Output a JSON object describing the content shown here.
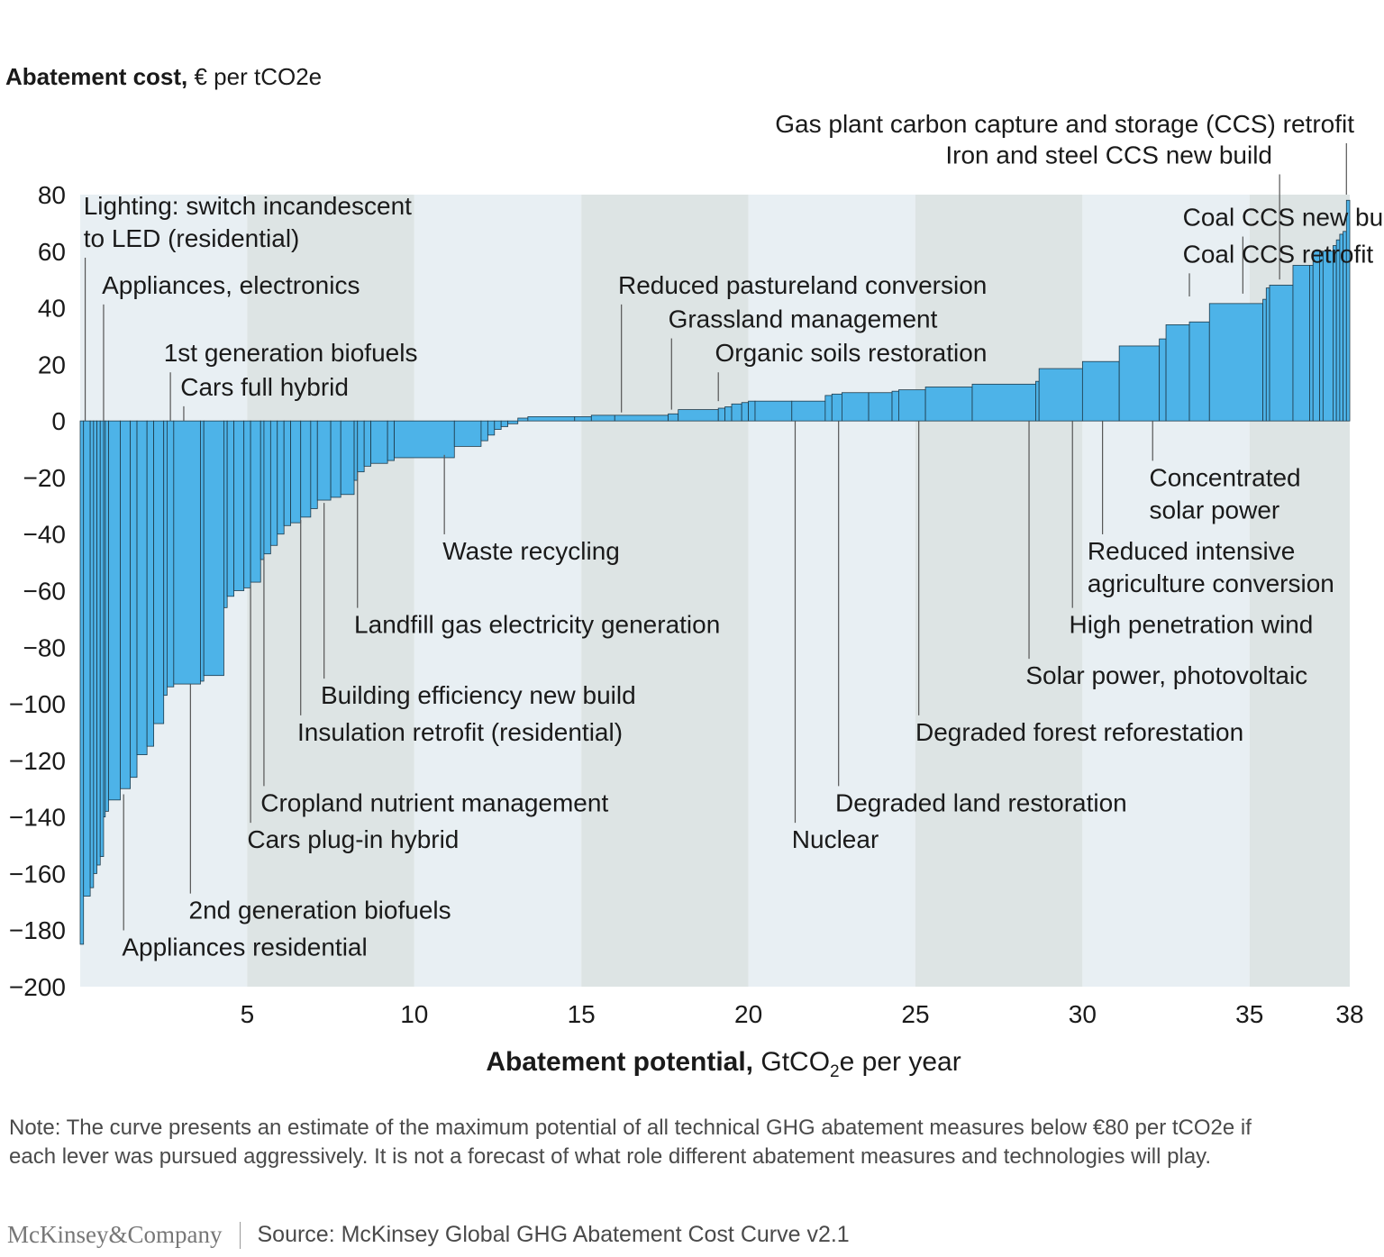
{
  "chart_data": {
    "type": "bar",
    "subtype": "marginal-abatement-cost-curve",
    "ylabel_bold": "Abatement cost,",
    "ylabel_rest": "€ per tCO2e",
    "xlabel_bold": "Abatement potential,",
    "xlabel_rest_pre": "GtCO",
    "xlabel_sub": "2",
    "xlabel_rest_post": "e per year",
    "xlim": [
      0,
      38
    ],
    "ylim": [
      -200,
      80
    ],
    "xticks": [
      5,
      10,
      15,
      20,
      25,
      30,
      35,
      38
    ],
    "yticks": [
      80,
      60,
      40,
      20,
      0,
      -20,
      -40,
      -60,
      -80,
      -100,
      -120,
      -140,
      -160,
      -180,
      -200
    ],
    "colors": {
      "bar": "#4db3e8",
      "bar_edge": "#1e3a4a",
      "band_light": "#e8eff3",
      "band_dark": "#dde4e4"
    },
    "bars": [
      {
        "x0": 0.0,
        "x1": 0.1,
        "cost": -185
      },
      {
        "x0": 0.1,
        "x1": 0.3,
        "cost": -168
      },
      {
        "x0": 0.3,
        "x1": 0.4,
        "cost": -165
      },
      {
        "x0": 0.4,
        "x1": 0.5,
        "cost": -160
      },
      {
        "x0": 0.5,
        "x1": 0.6,
        "cost": -157
      },
      {
        "x0": 0.6,
        "x1": 0.7,
        "cost": -154
      },
      {
        "x0": 0.7,
        "x1": 0.75,
        "cost": -140
      },
      {
        "x0": 0.75,
        "x1": 0.85,
        "cost": -138
      },
      {
        "x0": 0.85,
        "x1": 1.2,
        "cost": -134
      },
      {
        "x0": 1.2,
        "x1": 1.5,
        "cost": -130
      },
      {
        "x0": 1.5,
        "x1": 1.7,
        "cost": -126
      },
      {
        "x0": 1.7,
        "x1": 2.0,
        "cost": -118
      },
      {
        "x0": 2.0,
        "x1": 2.2,
        "cost": -115
      },
      {
        "x0": 2.2,
        "x1": 2.5,
        "cost": -107
      },
      {
        "x0": 2.5,
        "x1": 2.6,
        "cost": -97
      },
      {
        "x0": 2.6,
        "x1": 2.8,
        "cost": -94
      },
      {
        "x0": 2.8,
        "x1": 3.6,
        "cost": -93
      },
      {
        "x0": 3.6,
        "x1": 3.7,
        "cost": -92
      },
      {
        "x0": 3.7,
        "x1": 4.3,
        "cost": -90
      },
      {
        "x0": 4.3,
        "x1": 4.4,
        "cost": -66
      },
      {
        "x0": 4.4,
        "x1": 4.6,
        "cost": -62
      },
      {
        "x0": 4.6,
        "x1": 4.9,
        "cost": -60
      },
      {
        "x0": 4.9,
        "x1": 5.1,
        "cost": -59
      },
      {
        "x0": 5.1,
        "x1": 5.4,
        "cost": -57
      },
      {
        "x0": 5.4,
        "x1": 5.5,
        "cost": -49
      },
      {
        "x0": 5.5,
        "x1": 5.7,
        "cost": -47
      },
      {
        "x0": 5.7,
        "x1": 5.9,
        "cost": -44
      },
      {
        "x0": 5.9,
        "x1": 6.1,
        "cost": -40
      },
      {
        "x0": 6.1,
        "x1": 6.3,
        "cost": -37
      },
      {
        "x0": 6.3,
        "x1": 6.6,
        "cost": -36
      },
      {
        "x0": 6.6,
        "x1": 6.9,
        "cost": -34
      },
      {
        "x0": 6.9,
        "x1": 7.1,
        "cost": -31
      },
      {
        "x0": 7.1,
        "x1": 7.5,
        "cost": -28
      },
      {
        "x0": 7.5,
        "x1": 7.8,
        "cost": -27
      },
      {
        "x0": 7.8,
        "x1": 8.2,
        "cost": -26
      },
      {
        "x0": 8.2,
        "x1": 8.3,
        "cost": -21
      },
      {
        "x0": 8.3,
        "x1": 8.5,
        "cost": -18
      },
      {
        "x0": 8.5,
        "x1": 8.7,
        "cost": -16
      },
      {
        "x0": 8.7,
        "x1": 9.2,
        "cost": -15
      },
      {
        "x0": 9.2,
        "x1": 9.4,
        "cost": -14
      },
      {
        "x0": 9.4,
        "x1": 11.2,
        "cost": -13
      },
      {
        "x0": 11.2,
        "x1": 12.0,
        "cost": -9
      },
      {
        "x0": 12.0,
        "x1": 12.2,
        "cost": -7
      },
      {
        "x0": 12.2,
        "x1": 12.4,
        "cost": -5
      },
      {
        "x0": 12.4,
        "x1": 12.6,
        "cost": -3
      },
      {
        "x0": 12.6,
        "x1": 12.8,
        "cost": -2
      },
      {
        "x0": 12.8,
        "x1": 13.1,
        "cost": -1
      },
      {
        "x0": 13.1,
        "x1": 13.4,
        "cost": 1
      },
      {
        "x0": 13.4,
        "x1": 14.8,
        "cost": 1.5
      },
      {
        "x0": 14.8,
        "x1": 15.3,
        "cost": 1.5
      },
      {
        "x0": 15.3,
        "x1": 16.0,
        "cost": 2
      },
      {
        "x0": 16.0,
        "x1": 17.6,
        "cost": 2
      },
      {
        "x0": 17.6,
        "x1": 17.9,
        "cost": 2.5
      },
      {
        "x0": 17.9,
        "x1": 19.1,
        "cost": 4
      },
      {
        "x0": 19.1,
        "x1": 19.3,
        "cost": 4.5
      },
      {
        "x0": 19.3,
        "x1": 19.5,
        "cost": 5
      },
      {
        "x0": 19.5,
        "x1": 19.8,
        "cost": 6
      },
      {
        "x0": 19.8,
        "x1": 20.0,
        "cost": 6.5
      },
      {
        "x0": 20.0,
        "x1": 20.2,
        "cost": 7
      },
      {
        "x0": 20.2,
        "x1": 21.3,
        "cost": 7
      },
      {
        "x0": 21.3,
        "x1": 22.3,
        "cost": 7
      },
      {
        "x0": 22.3,
        "x1": 22.5,
        "cost": 9
      },
      {
        "x0": 22.5,
        "x1": 22.8,
        "cost": 9.5
      },
      {
        "x0": 22.8,
        "x1": 23.6,
        "cost": 10
      },
      {
        "x0": 23.6,
        "x1": 24.3,
        "cost": 10
      },
      {
        "x0": 24.3,
        "x1": 24.5,
        "cost": 10.5
      },
      {
        "x0": 24.5,
        "x1": 25.3,
        "cost": 11
      },
      {
        "x0": 25.3,
        "x1": 26.7,
        "cost": 12
      },
      {
        "x0": 26.7,
        "x1": 28.6,
        "cost": 13
      },
      {
        "x0": 28.6,
        "x1": 28.7,
        "cost": 14
      },
      {
        "x0": 28.7,
        "x1": 30.0,
        "cost": 18.5
      },
      {
        "x0": 30.0,
        "x1": 31.1,
        "cost": 21
      },
      {
        "x0": 31.1,
        "x1": 32.3,
        "cost": 26.5
      },
      {
        "x0": 32.3,
        "x1": 32.5,
        "cost": 29
      },
      {
        "x0": 32.5,
        "x1": 33.2,
        "cost": 34
      },
      {
        "x0": 33.2,
        "x1": 33.8,
        "cost": 35
      },
      {
        "x0": 33.8,
        "x1": 35.4,
        "cost": 41.5
      },
      {
        "x0": 35.4,
        "x1": 35.5,
        "cost": 43
      },
      {
        "x0": 35.5,
        "x1": 35.6,
        "cost": 47
      },
      {
        "x0": 35.6,
        "x1": 36.3,
        "cost": 48
      },
      {
        "x0": 36.3,
        "x1": 36.8,
        "cost": 55
      },
      {
        "x0": 36.8,
        "x1": 36.9,
        "cost": 55
      },
      {
        "x0": 36.9,
        "x1": 37.1,
        "cost": 60
      },
      {
        "x0": 37.1,
        "x1": 37.2,
        "cost": 60
      },
      {
        "x0": 37.2,
        "x1": 37.5,
        "cost": 60
      },
      {
        "x0": 37.5,
        "x1": 37.6,
        "cost": 62
      },
      {
        "x0": 37.6,
        "x1": 37.7,
        "cost": 64
      },
      {
        "x0": 37.7,
        "x1": 37.8,
        "cost": 66
      },
      {
        "x0": 37.8,
        "x1": 37.9,
        "cost": 67
      },
      {
        "x0": 37.9,
        "x1": 38.0,
        "cost": 78
      }
    ],
    "annotations": [
      {
        "lines": [
          "Lighting: switch incandescent",
          "to LED (residential)"
        ],
        "anchor_x": 0.15,
        "anchor_cost": 0,
        "text_x": 0.1,
        "text_cost": 73,
        "side": "above"
      },
      {
        "lines": [
          "Appliances, electronics"
        ],
        "anchor_x": 0.7,
        "anchor_cost": 0,
        "text_x": 0.65,
        "text_cost": 45,
        "side": "above"
      },
      {
        "lines": [
          "1st generation biofuels"
        ],
        "anchor_x": 2.7,
        "anchor_cost": 0,
        "text_x": 2.5,
        "text_cost": 21,
        "side": "above"
      },
      {
        "lines": [
          "Cars full hybrid"
        ],
        "anchor_x": 3.1,
        "anchor_cost": 0,
        "text_x": 3.0,
        "text_cost": 9,
        "side": "above"
      },
      {
        "lines": [
          "Reduced pastureland conversion"
        ],
        "anchor_x": 16.2,
        "anchor_cost": 3,
        "text_x": 16.1,
        "text_cost": 45,
        "side": "above"
      },
      {
        "lines": [
          "Grassland management"
        ],
        "anchor_x": 17.7,
        "anchor_cost": 4,
        "text_x": 17.6,
        "text_cost": 33,
        "side": "above"
      },
      {
        "lines": [
          "Organic soils restoration"
        ],
        "anchor_x": 19.1,
        "anchor_cost": 7,
        "text_x": 19.0,
        "text_cost": 21,
        "side": "above"
      },
      {
        "lines": [
          "Coal CCS new build"
        ],
        "anchor_x": 34.8,
        "anchor_cost": 45,
        "text_x": 33.0,
        "text_cost": 69,
        "side": "above"
      },
      {
        "lines": [
          "Coal CCS retrofit"
        ],
        "anchor_x": 33.2,
        "anchor_cost": 44,
        "text_x": 33.0,
        "text_cost": 56,
        "side": "above"
      },
      {
        "lines": [
          "Iron and steel CCS new build"
        ],
        "anchor_x": 35.9,
        "anchor_cost": 50,
        "text_x": 25.9,
        "text_cost": 91,
        "side": "above"
      },
      {
        "lines": [
          "Gas plant carbon capture and storage (CCS) retrofit"
        ],
        "anchor_x": 37.9,
        "anchor_cost": 80,
        "text_x": 20.8,
        "text_cost": 102,
        "side": "above"
      },
      {
        "lines": [
          "Waste recycling"
        ],
        "anchor_x": 10.9,
        "anchor_cost": -12,
        "text_x": 10.85,
        "text_cost": -49,
        "side": "below"
      },
      {
        "lines": [
          "Landfill gas electricity generation"
        ],
        "anchor_x": 8.3,
        "anchor_cost": -18,
        "text_x": 8.2,
        "text_cost": -75,
        "side": "below"
      },
      {
        "lines": [
          "Building efficiency new build"
        ],
        "anchor_x": 7.3,
        "anchor_cost": -29,
        "text_x": 7.2,
        "text_cost": -100,
        "side": "below"
      },
      {
        "lines": [
          "Insulation retrofit (residential)"
        ],
        "anchor_x": 6.6,
        "anchor_cost": -35,
        "text_x": 6.5,
        "text_cost": -113,
        "side": "below"
      },
      {
        "lines": [
          "Cropland nutrient management"
        ],
        "anchor_x": 5.5,
        "anchor_cost": -48,
        "text_x": 5.4,
        "text_cost": -138,
        "side": "below"
      },
      {
        "lines": [
          "Cars plug-in hybrid"
        ],
        "anchor_x": 5.1,
        "anchor_cost": -58,
        "text_x": 5.0,
        "text_cost": -151,
        "side": "below"
      },
      {
        "lines": [
          "2nd generation biofuels"
        ],
        "anchor_x": 3.3,
        "anchor_cost": -93,
        "text_x": 3.25,
        "text_cost": -176,
        "side": "below"
      },
      {
        "lines": [
          "Appliances residential"
        ],
        "anchor_x": 1.3,
        "anchor_cost": -132,
        "text_x": 1.25,
        "text_cost": -189,
        "side": "below"
      },
      {
        "lines": [
          "Nuclear"
        ],
        "anchor_x": 21.4,
        "anchor_cost": 0,
        "text_x": 21.3,
        "text_cost": -151,
        "side": "below"
      },
      {
        "lines": [
          "Degraded land restoration"
        ],
        "anchor_x": 22.7,
        "anchor_cost": 0,
        "text_x": 22.6,
        "text_cost": -138,
        "side": "below"
      },
      {
        "lines": [
          "Degraded forest reforestation"
        ],
        "anchor_x": 25.1,
        "anchor_cost": 0,
        "text_x": 25.0,
        "text_cost": -113,
        "side": "below"
      },
      {
        "lines": [
          "Solar power, photovoltaic"
        ],
        "anchor_x": 28.4,
        "anchor_cost": 0,
        "text_x": 28.3,
        "text_cost": -93,
        "side": "below"
      },
      {
        "lines": [
          "High penetration wind"
        ],
        "anchor_x": 29.7,
        "anchor_cost": 0,
        "text_x": 29.6,
        "text_cost": -75,
        "side": "below"
      },
      {
        "lines": [
          "Reduced intensive",
          "agriculture conversion"
        ],
        "anchor_x": 30.6,
        "anchor_cost": 0,
        "text_x": 30.15,
        "text_cost": -49,
        "side": "below"
      },
      {
        "lines": [
          "Concentrated",
          "solar power"
        ],
        "anchor_x": 32.1,
        "anchor_cost": 0,
        "text_x": 32.0,
        "text_cost": -23,
        "side": "below"
      }
    ]
  },
  "note": "Note: The curve presents an estimate of the maximum potential of all technical GHG abatement measures below €80 per tCO2e if each lever was pursued aggressively. It is not a forecast of what role different abatement measures and technologies will play.",
  "footer": {
    "brand": "McKinsey&Company",
    "source": "Source: McKinsey Global GHG Abatement Cost Curve v2.1"
  }
}
